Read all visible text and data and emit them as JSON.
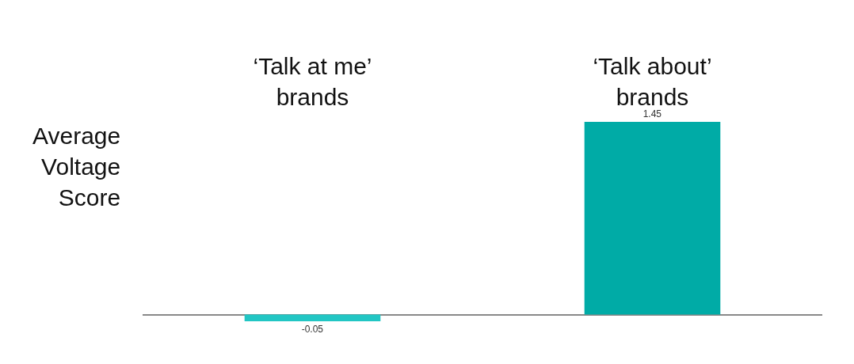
{
  "chart_data": {
    "type": "bar",
    "ylabel": "Average Voltage Score",
    "categories": [
      "‘Talk at me’ brands",
      "‘Talk about’ brands"
    ],
    "values": [
      -0.05,
      1.45
    ],
    "colors": [
      "#22c6c4",
      "#00aba6"
    ],
    "data_labels": true
  }
}
